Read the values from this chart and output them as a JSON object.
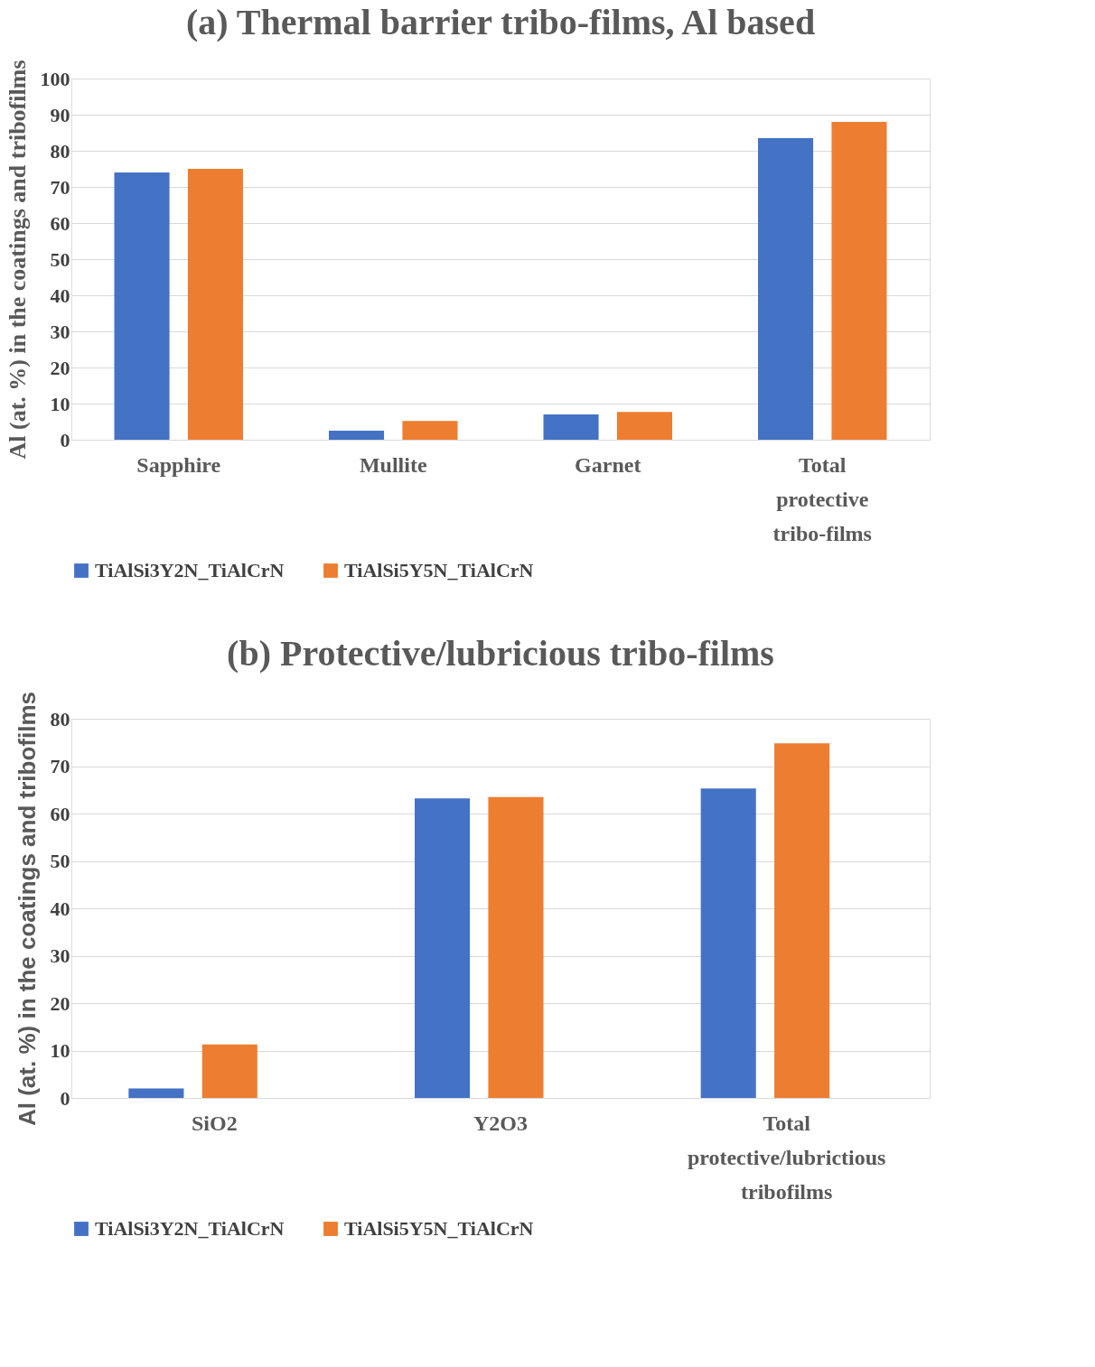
{
  "chart_data": [
    {
      "type": "bar",
      "title": "(a) Thermal barrier tribo-films, Al based",
      "ylabel": "Al (at. %) in the coatings and tribofilms",
      "categories": [
        "Sapphire",
        "Mullite",
        "Garnet",
        "Total protective tribo-films"
      ],
      "series": [
        {
          "name": "TiAlSi3Y2N_TiAlCrN",
          "color": "#4472c4",
          "values": [
            74,
            2.5,
            7,
            83.5
          ]
        },
        {
          "name": "TiAlSi5Y5N_TiAlCrN",
          "color": "#ed7d31",
          "values": [
            75,
            5.2,
            7.7,
            88
          ]
        }
      ],
      "ylim": [
        0,
        100
      ],
      "yticks": [
        0,
        10,
        20,
        30,
        40,
        50,
        60,
        70,
        80,
        90,
        100
      ],
      "grid": "y",
      "legend": "bottom"
    },
    {
      "type": "bar",
      "title": "(b) Protective/lubricious tribo-films",
      "ylabel": "Al (at. %) in the coatings and tribofilms",
      "categories": [
        "SiO2",
        "Y2O3",
        "Total protective/lubrictious tribofilms"
      ],
      "series": [
        {
          "name": "TiAlSi3Y2N_TiAlCrN",
          "color": "#4472c4",
          "values": [
            2,
            63.2,
            65.3
          ]
        },
        {
          "name": "TiAlSi5Y5N_TiAlCrN",
          "color": "#ed7d31",
          "values": [
            11.3,
            63.5,
            74.8
          ]
        }
      ],
      "ylim": [
        0,
        80
      ],
      "yticks": [
        0,
        10,
        20,
        30,
        40,
        50,
        60,
        70,
        80
      ],
      "grid": "y",
      "legend": "bottom"
    }
  ]
}
